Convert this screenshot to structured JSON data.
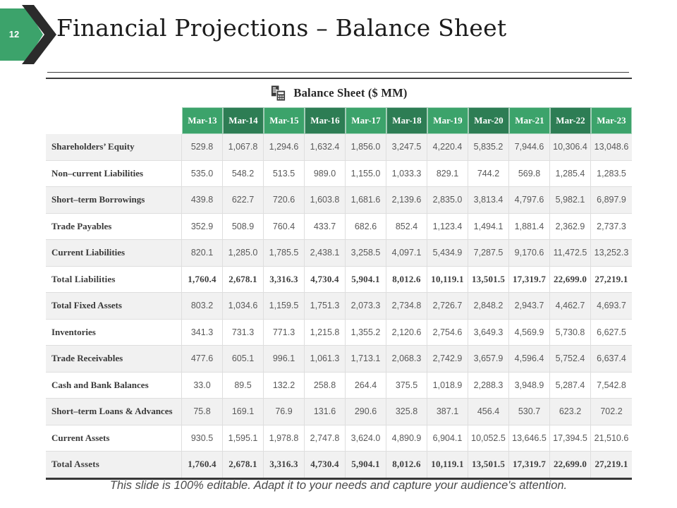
{
  "slide": {
    "page_number": "12",
    "title": "Financial Projections – Balance Sheet",
    "footer_note": "This slide is 100% editable. Adapt it to your needs and capture your audience's attention."
  },
  "icons": {
    "page_badge": "chevron-arrow-right-icon",
    "table_caption": "calculator-document-icon"
  },
  "colors": {
    "green_light": "#3CA36B",
    "green_dark": "#2D7D54",
    "chevron_black": "#2B2B2B",
    "band_gray": "#F1F1F1",
    "border_light": "#DEDEDE",
    "icon_dark": "#3D3D3D"
  },
  "table": {
    "caption": "Balance Sheet ($ MM)",
    "columns": [
      "Mar-13",
      "Mar-14",
      "Mar-15",
      "Mar-16",
      "Mar-17",
      "Mar-18",
      "Mar-19",
      "Mar-20",
      "Mar-21",
      "Mar-22",
      "Mar-23"
    ],
    "rows": [
      {
        "label": "Shareholders’ Equity",
        "total": false,
        "values": [
          "529.8",
          "1,067.8",
          "1,294.6",
          "1,632.4",
          "1,856.0",
          "3,247.5",
          "4,220.4",
          "5,835.2",
          "7,944.6",
          "10,306.4",
          "13,048.6"
        ]
      },
      {
        "label": "Non–current Liabilities",
        "total": false,
        "values": [
          "535.0",
          "548.2",
          "513.5",
          "989.0",
          "1,155.0",
          "1,033.3",
          "829.1",
          "744.2",
          "569.8",
          "1,285.4",
          "1,283.5"
        ]
      },
      {
        "label": "Short–term Borrowings",
        "total": false,
        "values": [
          "439.8",
          "622.7",
          "720.6",
          "1,603.8",
          "1,681.6",
          "2,139.6",
          "2,835.0",
          "3,813.4",
          "4,797.6",
          "5,982.1",
          "6,897.9"
        ]
      },
      {
        "label": "Trade Payables",
        "total": false,
        "values": [
          "352.9",
          "508.9",
          "760.4",
          "433.7",
          "682.6",
          "852.4",
          "1,123.4",
          "1,494.1",
          "1,881.4",
          "2,362.9",
          "2,737.3"
        ]
      },
      {
        "label": "Current Liabilities",
        "total": false,
        "values": [
          "820.1",
          "1,285.0",
          "1,785.5",
          "2,438.1",
          "3,258.5",
          "4,097.1",
          "5,434.9",
          "7,287.5",
          "9,170.6",
          "11,472.5",
          "13,252.3"
        ]
      },
      {
        "label": "Total Liabilities",
        "total": true,
        "values": [
          "1,760.4",
          "2,678.1",
          "3,316.3",
          "4,730.4",
          "5,904.1",
          "8,012.6",
          "10,119.1",
          "13,501.5",
          "17,319.7",
          "22,699.0",
          "27,219.1"
        ]
      },
      {
        "label": "Total Fixed Assets",
        "total": false,
        "values": [
          "803.2",
          "1,034.6",
          "1,159.5",
          "1,751.3",
          "2,073.3",
          "2,734.8",
          "2,726.7",
          "2,848.2",
          "2,943.7",
          "4,462.7",
          "4,693.7"
        ]
      },
      {
        "label": "Inventories",
        "total": false,
        "values": [
          "341.3",
          "731.3",
          "771.3",
          "1,215.8",
          "1,355.2",
          "2,120.6",
          "2,754.6",
          "3,649.3",
          "4,569.9",
          "5,730.8",
          "6,627.5"
        ]
      },
      {
        "label": "Trade Receivables",
        "total": false,
        "values": [
          "477.6",
          "605.1",
          "996.1",
          "1,061.3",
          "1,713.1",
          "2,068.3",
          "2,742.9",
          "3,657.9",
          "4,596.4",
          "5,752.4",
          "6,637.4"
        ]
      },
      {
        "label": "Cash and Bank Balances",
        "total": false,
        "values": [
          "33.0",
          "89.5",
          "132.2",
          "258.8",
          "264.4",
          "375.5",
          "1,018.9",
          "2,288.3",
          "3,948.9",
          "5,287.4",
          "7,542.8"
        ]
      },
      {
        "label": "Short–term Loans & Advances",
        "total": false,
        "values": [
          "75.8",
          "169.1",
          "76.9",
          "131.6",
          "290.6",
          "325.8",
          "387.1",
          "456.4",
          "530.7",
          "623.2",
          "702.2"
        ]
      },
      {
        "label": "Current Assets",
        "total": false,
        "values": [
          "930.5",
          "1,595.1",
          "1,978.8",
          "2,747.8",
          "3,624.0",
          "4,890.9",
          "6,904.1",
          "10,052.5",
          "13,646.5",
          "17,394.5",
          "21,510.6"
        ]
      },
      {
        "label": "Total Assets",
        "total": true,
        "values": [
          "1,760.4",
          "2,678.1",
          "3,316.3",
          "4,730.4",
          "5,904.1",
          "8,012.6",
          "10,119.1",
          "13,501.5",
          "17,319.7",
          "22,699.0",
          "27,219.1"
        ]
      }
    ]
  }
}
